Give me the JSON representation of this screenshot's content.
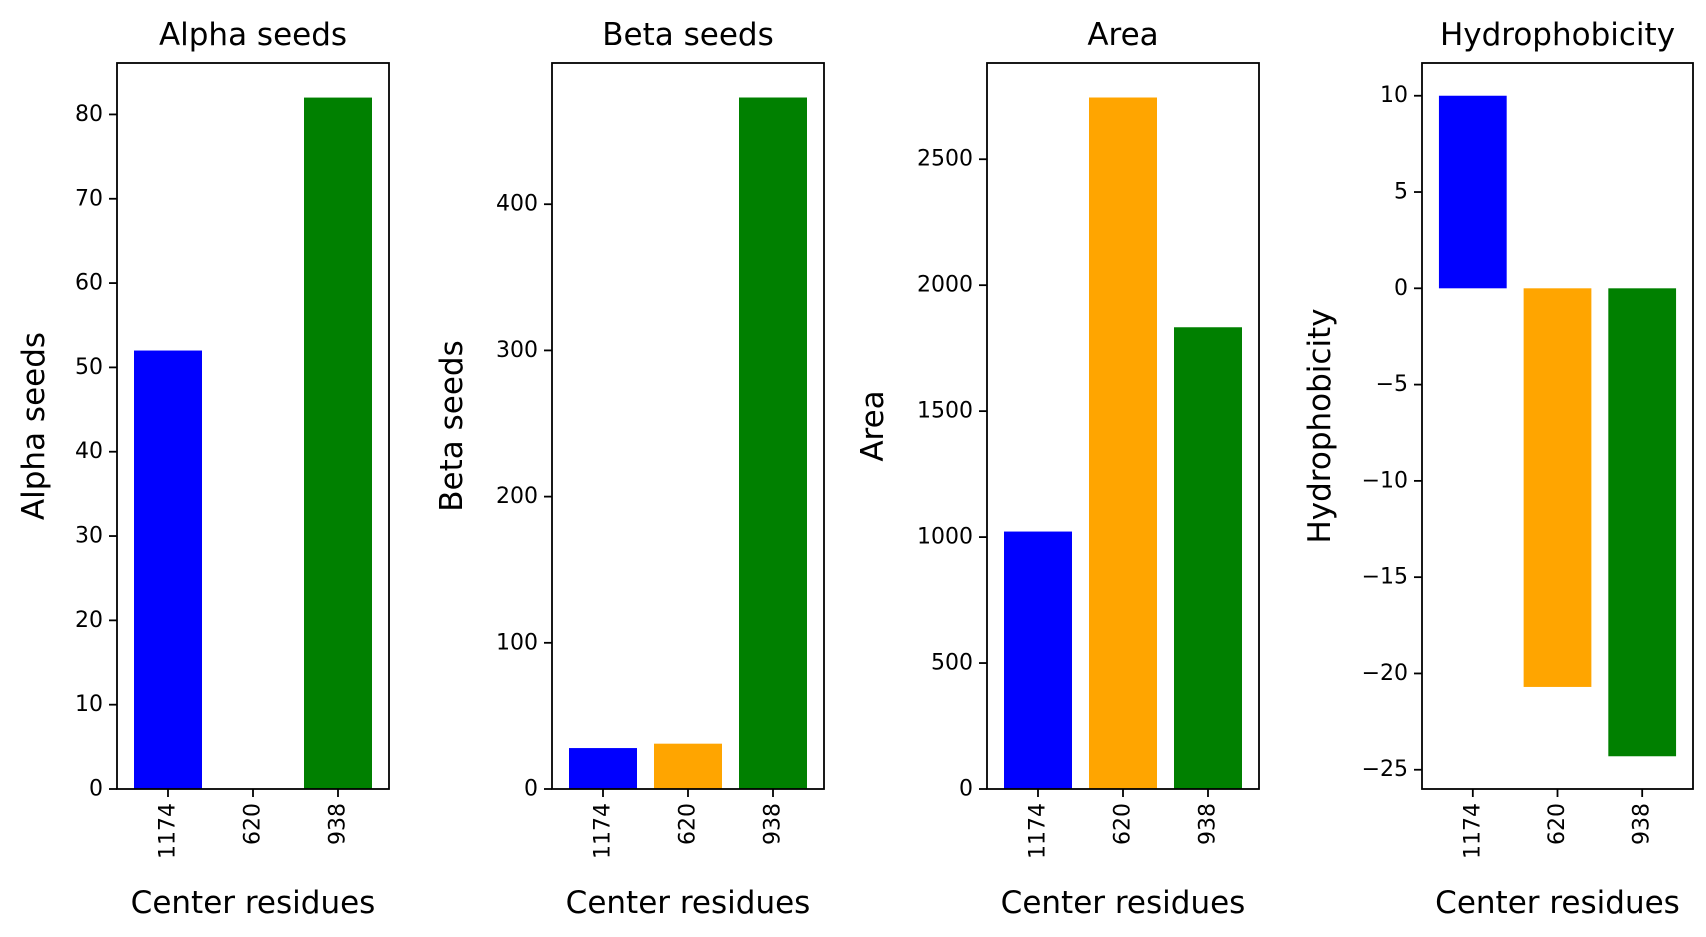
{
  "chart_data": [
    {
      "type": "bar",
      "title": "Alpha seeds",
      "xlabel": "Center residues",
      "ylabel": "Alpha seeds",
      "categories": [
        "1174",
        "620",
        "938"
      ],
      "values": [
        52,
        0,
        82
      ],
      "colors": [
        "#0000ff",
        "#ffa500",
        "#008000"
      ],
      "ylim": [
        0,
        86.1
      ],
      "yticks": [
        0,
        10,
        20,
        30,
        40,
        50,
        60,
        70,
        80
      ],
      "ytick_labels": [
        "0",
        "10",
        "20",
        "30",
        "40",
        "50",
        "60",
        "70",
        "80"
      ],
      "grid": false
    },
    {
      "type": "bar",
      "title": "Beta seeds",
      "xlabel": "Center residues",
      "ylabel": "Beta seeds",
      "categories": [
        "1174",
        "620",
        "938"
      ],
      "values": [
        28,
        31,
        473
      ],
      "colors": [
        "#0000ff",
        "#ffa500",
        "#008000"
      ],
      "ylim": [
        0,
        496.6
      ],
      "yticks": [
        0,
        100,
        200,
        300,
        400
      ],
      "ytick_labels": [
        "0",
        "100",
        "200",
        "300",
        "400"
      ],
      "grid": false
    },
    {
      "type": "bar",
      "title": "Area",
      "xlabel": "Center residues",
      "ylabel": "Area",
      "categories": [
        "1174",
        "620",
        "938"
      ],
      "values": [
        1022,
        2745,
        1833
      ],
      "colors": [
        "#0000ff",
        "#ffa500",
        "#008000"
      ],
      "ylim": [
        0,
        2882
      ],
      "yticks": [
        0,
        500,
        1000,
        1500,
        2000,
        2500
      ],
      "ytick_labels": [
        "0",
        "500",
        "1000",
        "1500",
        "2000",
        "2500"
      ],
      "grid": false
    },
    {
      "type": "bar",
      "title": "Hydrophobicity",
      "xlabel": "Center residues",
      "ylabel": "Hydrophobicity",
      "categories": [
        "1174",
        "620",
        "938"
      ],
      "values": [
        10,
        -20.7,
        -24.3
      ],
      "colors": [
        "#0000ff",
        "#ffa500",
        "#008000"
      ],
      "ylim": [
        -26.0,
        11.7
      ],
      "yticks": [
        10,
        5,
        0,
        -5,
        -10,
        -15,
        -20,
        -25
      ],
      "ytick_labels": [
        "10",
        "5",
        "0",
        "−5",
        "−10",
        "−15",
        "−20",
        "−25"
      ],
      "grid": false
    }
  ]
}
